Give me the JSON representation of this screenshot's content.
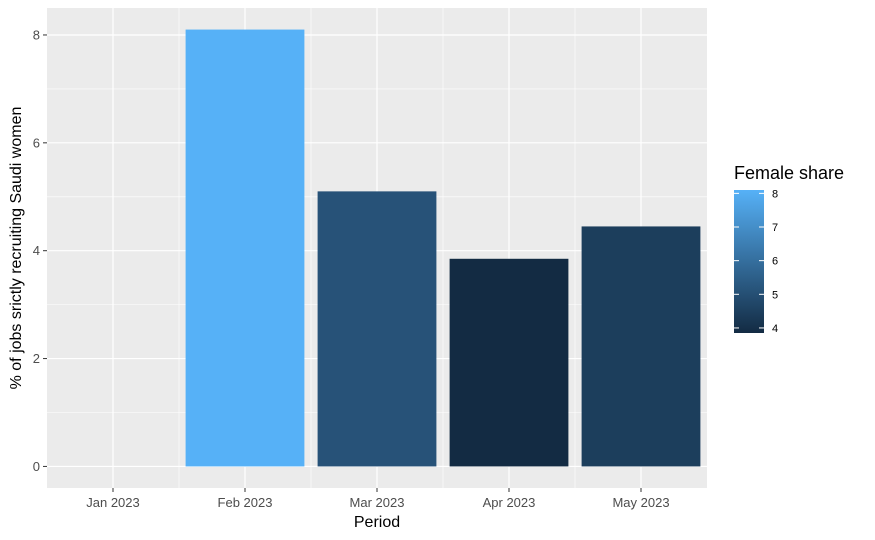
{
  "chart_data": {
    "type": "bar",
    "categories": [
      "Feb 2023",
      "Mar 2023",
      "Apr 2023",
      "May 2023"
    ],
    "x_ticks": [
      "Jan 2023",
      "Feb 2023",
      "Mar 2023",
      "Apr 2023",
      "May 2023"
    ],
    "values": [
      8.1,
      5.1,
      3.85,
      4.45
    ],
    "xlabel": "Period",
    "ylabel": "% of jobs srictly recruiting Saudi women",
    "ylim": [
      -0.4,
      8.5
    ],
    "y_ticks": [
      0,
      2,
      4,
      6,
      8
    ],
    "grid": true,
    "legend": {
      "title": "Female share",
      "placement": "right",
      "type": "colorbar",
      "range": [
        3.85,
        8.1
      ],
      "ticks": [
        4,
        5,
        6,
        7,
        8
      ],
      "low_color": "#132B43",
      "high_color": "#56B1F7"
    },
    "panel_background": "#EBEBEB",
    "grid_color": "#FFFFFF"
  }
}
